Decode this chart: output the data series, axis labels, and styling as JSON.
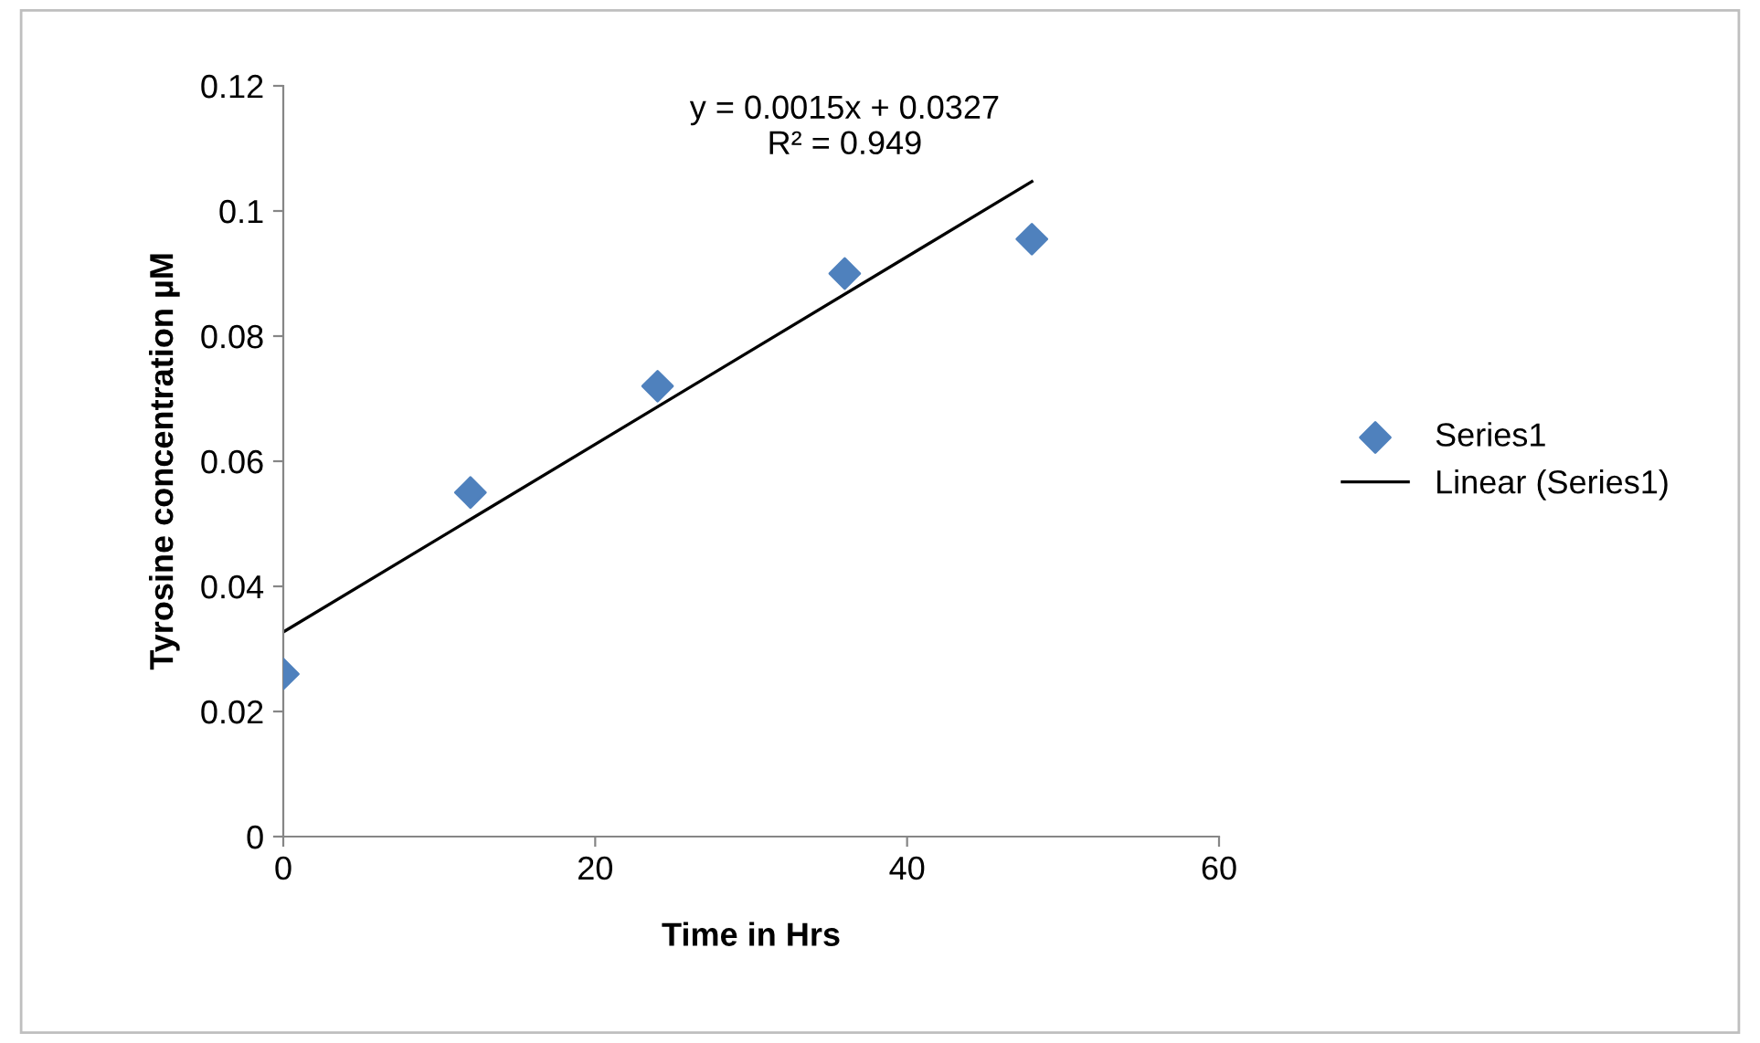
{
  "chart_data": {
    "type": "scatter",
    "xlabel": "Time in Hrs",
    "ylabel": "Tyrosine concentration µM",
    "series": [
      {
        "name": "Series1",
        "color": "#4f81bd",
        "marker": "diamond",
        "x": [
          0,
          12,
          24,
          36,
          48
        ],
        "values": [
          0.026,
          0.055,
          0.072,
          0.09,
          0.0955
        ]
      },
      {
        "name": "Linear (Series1)",
        "type": "line",
        "color": "#000000",
        "marker": "none",
        "x": [
          0,
          48
        ],
        "values": [
          0.0327,
          0.1047
        ]
      }
    ],
    "annotations": [
      "y = 0.0015x + 0.0327\nR² = 0.949"
    ],
    "xlim": [
      0,
      60
    ],
    "ylim": [
      0,
      0.12
    ],
    "xticks": [
      0,
      20,
      40,
      60
    ],
    "yticks": [
      0,
      0.02,
      0.04,
      0.06,
      0.08,
      0.1,
      0.12
    ],
    "grid": false,
    "legend": "right"
  }
}
